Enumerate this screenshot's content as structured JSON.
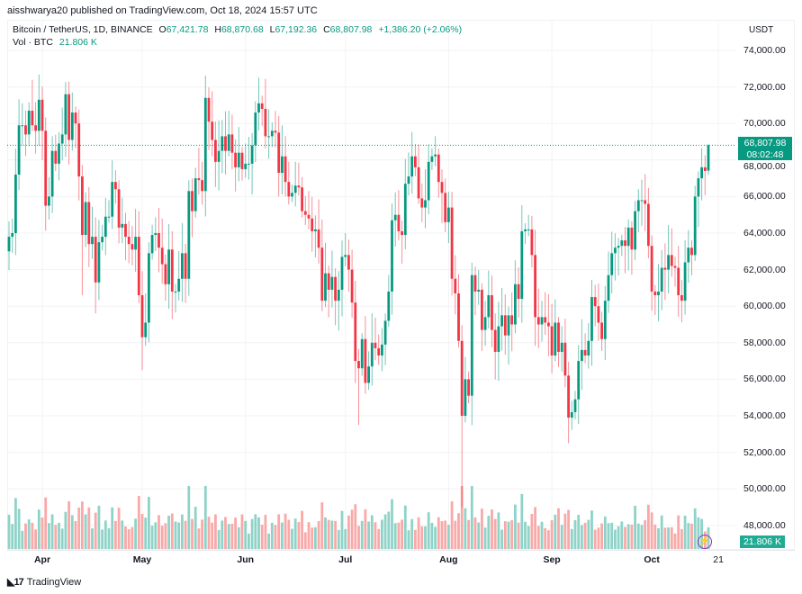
{
  "published": "aisshwarya20 published on TradingView.com, Oct 18, 2024 15:57 UTC",
  "legend": {
    "symbol": "Bitcoin / TetherUS, 1D, BINANCE",
    "open_label": "O",
    "open": "67,421.78",
    "high_label": "H",
    "high": "68,870.68",
    "low_label": "L",
    "low": "67,192.36",
    "close_label": "C",
    "close": "68,807.98",
    "change": "+1,386.20 (+2.06%)",
    "vol_label": "Vol · BTC",
    "vol_value": "21.806 K"
  },
  "axis": {
    "currency": "USDT",
    "price_box": "68,807.98",
    "countdown": "08:02:48",
    "vol_box": "21.806 K"
  },
  "footer": {
    "brand": "TradingView"
  },
  "colors": {
    "up": "#089981",
    "down": "#f23645",
    "vol_up": "#8fd3c8",
    "vol_down": "#f8a9a8",
    "grid": "#f2f3f5"
  },
  "chart_data": {
    "type": "candlestick",
    "title": "Bitcoin / TetherUS, 1D, BINANCE",
    "ylabel": "USDT",
    "ylim": [
      47000,
      75000
    ],
    "y_ticks": [
      "74,000.00",
      "72,000.00",
      "70,000.00",
      "68,000.00",
      "66,000.00",
      "64,000.00",
      "62,000.00",
      "60,000.00",
      "58,000.00",
      "56,000.00",
      "54,000.00",
      "52,000.00",
      "50,000.00",
      "48,000.00"
    ],
    "x_ticks": [
      {
        "label": "Apr",
        "day": 10,
        "bold": true
      },
      {
        "label": "May",
        "day": 40,
        "bold": true
      },
      {
        "label": "Jun",
        "day": 71,
        "bold": true
      },
      {
        "label": "Jul",
        "day": 101,
        "bold": true
      },
      {
        "label": "Aug",
        "day": 132,
        "bold": true
      },
      {
        "label": "Sep",
        "day": 163,
        "bold": true
      },
      {
        "label": "Oct",
        "day": 193,
        "bold": true
      },
      {
        "label": "21",
        "day": 213,
        "bold": false
      }
    ],
    "start_date": "2024-03-22",
    "first_open": 63000,
    "closes_k": [
      63.8,
      64.0,
      67.2,
      69.9,
      69.9,
      69.4,
      70.7,
      69.9,
      69.6,
      71.3,
      69.6,
      65.5,
      66.0,
      68.5,
      67.8,
      68.9,
      69.4,
      71.6,
      69.1,
      70.6,
      70.0,
      67.1,
      63.9,
      65.7,
      63.4,
      63.8,
      61.3,
      63.5,
      63.8,
      64.9,
      64.9,
      66.8,
      66.4,
      64.3,
      64.5,
      63.8,
      63.4,
      63.1,
      63.8,
      60.6,
      58.3,
      59.1,
      62.9,
      63.9,
      64.0,
      63.2,
      62.3,
      61.2,
      63.1,
      60.8,
      60.8,
      61.5,
      62.9,
      61.5,
      66.3,
      65.2,
      67.0,
      66.9,
      66.3,
      71.4,
      70.1,
      69.1,
      67.9,
      68.5,
      69.3,
      68.5,
      69.4,
      68.4,
      67.6,
      68.4,
      67.5,
      67.8,
      67.8,
      68.8,
      70.6,
      71.1,
      70.8,
      69.3,
      69.3,
      69.6,
      69.5,
      67.3,
      68.2,
      66.8,
      66.0,
      66.2,
      66.6,
      66.5,
      65.2,
      65.0,
      64.8,
      64.1,
      64.2,
      63.2,
      60.3,
      61.8,
      60.9,
      61.6,
      60.3,
      60.9,
      62.7,
      62.8,
      62.0,
      60.2,
      57.0,
      56.6,
      58.2,
      55.8,
      56.7,
      58.0,
      57.7,
      57.3,
      57.9,
      59.2,
      60.8,
      64.7,
      65.0,
      64.1,
      63.9,
      66.7,
      67.1,
      68.2,
      67.6,
      65.9,
      65.4,
      65.8,
      67.9,
      68.2,
      68.3,
      66.8,
      66.2,
      64.6,
      65.4,
      61.5,
      60.7,
      58.1,
      54.0,
      56.0,
      55.1,
      61.7,
      60.8,
      60.9,
      58.7,
      59.4,
      60.6,
      58.7,
      57.5,
      58.9,
      59.5,
      58.4,
      59.5,
      59.0,
      61.2,
      60.4,
      64.1,
      64.2,
      64.2,
      62.8,
      59.4,
      59.0,
      59.4,
      59.1,
      58.9,
      57.3,
      59.1,
      57.5,
      58.0,
      56.2,
      53.9,
      54.2,
      54.9,
      57.0,
      57.6,
      57.3,
      58.1,
      60.5,
      60.0,
      59.1,
      58.2,
      60.3,
      61.7,
      62.9,
      63.2,
      63.3,
      63.6,
      63.3,
      64.3,
      63.1,
      65.2,
      65.8,
      65.8,
      65.6,
      63.3,
      60.8,
      60.6,
      60.8,
      62.1,
      62.0,
      62.8,
      62.2,
      62.1,
      60.6,
      60.3,
      62.4,
      63.2,
      62.8,
      66.0,
      67.0,
      67.6,
      67.4,
      68.808
    ],
    "last_candle": {
      "open": 67421.78,
      "high": 68870.68,
      "low": 67192.36,
      "close": 68807.98,
      "volume_k": 21.806
    },
    "notable_lows": {
      "2024-08-05": 49000,
      "2024-04-13": 60600,
      "2024-05-01": 56500,
      "2024-07-05": 53500,
      "2024-09-06": 52500
    },
    "current_price": 68807.98
  }
}
